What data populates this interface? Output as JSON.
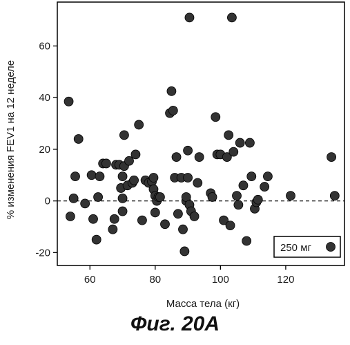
{
  "figure_caption": "Фиг. 20A",
  "chart_data": {
    "type": "scatter",
    "title": "",
    "xlabel": "Масса тела (кг)",
    "ylabel": "% изменения FEV1 на 12 неделе",
    "xlim": [
      50,
      138
    ],
    "ylim": [
      -25,
      77
    ],
    "x_ticks": [
      60,
      80,
      100,
      120
    ],
    "y_ticks": [
      -20,
      0,
      20,
      40,
      60
    ],
    "reference_line": {
      "y": 0,
      "style": "dashed"
    },
    "legend": {
      "placement": "bottom-right",
      "entries": [
        "250 мг"
      ]
    },
    "marker_color": "#333333",
    "grid": false,
    "series": [
      {
        "name": "250 мг",
        "points": [
          [
            53.5,
            38.5
          ],
          [
            54,
            -6
          ],
          [
            55,
            1
          ],
          [
            55.5,
            9.5
          ],
          [
            56.5,
            24
          ],
          [
            58.5,
            -1
          ],
          [
            60.5,
            10
          ],
          [
            61,
            -7
          ],
          [
            62,
            -15
          ],
          [
            62.5,
            1.5
          ],
          [
            63,
            9.5
          ],
          [
            64,
            14.5
          ],
          [
            65,
            14.5
          ],
          [
            67,
            -11
          ],
          [
            67.5,
            -7
          ],
          [
            68,
            14
          ],
          [
            69,
            14
          ],
          [
            69.5,
            5
          ],
          [
            70,
            1
          ],
          [
            70,
            -4
          ],
          [
            70,
            9.5
          ],
          [
            70.5,
            13.5
          ],
          [
            70.5,
            25.5
          ],
          [
            71.5,
            6
          ],
          [
            72,
            15.5
          ],
          [
            73,
            7
          ],
          [
            73.5,
            8
          ],
          [
            74,
            18
          ],
          [
            75,
            29.5
          ],
          [
            76,
            -7.5
          ],
          [
            77,
            8
          ],
          [
            78,
            7
          ],
          [
            79,
            7.5
          ],
          [
            79.5,
            9
          ],
          [
            79.5,
            4.5
          ],
          [
            80,
            2
          ],
          [
            80,
            -4.5
          ],
          [
            80.5,
            0
          ],
          [
            81,
            1.5
          ],
          [
            81.5,
            1.5
          ],
          [
            83,
            -9
          ],
          [
            84.5,
            34
          ],
          [
            85,
            42.5
          ],
          [
            85.5,
            35
          ],
          [
            86,
            9
          ],
          [
            86.5,
            17
          ],
          [
            87,
            -5
          ],
          [
            88,
            9
          ],
          [
            88.5,
            -11
          ],
          [
            89,
            -19.5
          ],
          [
            89.5,
            0
          ],
          [
            89.5,
            1.5
          ],
          [
            90,
            9
          ],
          [
            90,
            19.5
          ],
          [
            90.5,
            -1.5
          ],
          [
            90.5,
            71
          ],
          [
            91,
            -4
          ],
          [
            92,
            -6
          ],
          [
            93,
            7
          ],
          [
            93.5,
            17
          ],
          [
            97,
            3
          ],
          [
            97.5,
            1.5
          ],
          [
            98.5,
            32.5
          ],
          [
            99,
            18
          ],
          [
            100,
            18
          ],
          [
            101,
            -7.5
          ],
          [
            102,
            17
          ],
          [
            102.5,
            25.5
          ],
          [
            103,
            -9.5
          ],
          [
            103.5,
            71
          ],
          [
            104,
            19
          ],
          [
            105,
            2
          ],
          [
            105.5,
            -1.5
          ],
          [
            106,
            22.5
          ],
          [
            107,
            6
          ],
          [
            108,
            -15.5
          ],
          [
            109,
            22.5
          ],
          [
            109.5,
            9.5
          ],
          [
            110.5,
            -3
          ],
          [
            111,
            -0.5
          ],
          [
            111.5,
            0.5
          ],
          [
            113.5,
            5.5
          ],
          [
            114.5,
            9.5
          ],
          [
            121.5,
            2
          ],
          [
            134,
            17
          ],
          [
            135,
            2
          ]
        ]
      }
    ]
  }
}
